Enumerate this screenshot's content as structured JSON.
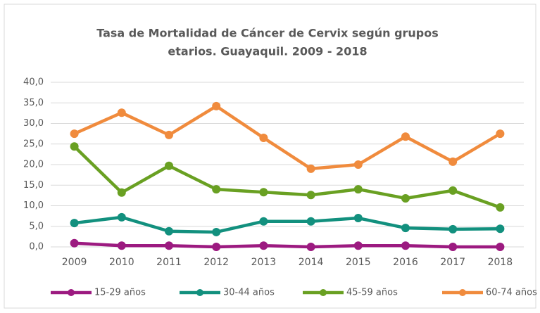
{
  "chart_data": {
    "type": "line",
    "title": [
      "Tasa de Mortalidad de Cáncer de Cervix según grupos",
      "etarios. Guayaquil. 2009 - 2018"
    ],
    "categories": [
      "2009",
      "2010",
      "2011",
      "2012",
      "2013",
      "2014",
      "2015",
      "2016",
      "2017",
      "2018"
    ],
    "series": [
      {
        "name": "15-29 años",
        "color": "#9c1a80",
        "values": [
          0.9,
          0.3,
          0.3,
          0.0,
          0.3,
          0.0,
          0.3,
          0.3,
          0.0,
          0.0
        ]
      },
      {
        "name": "30-44 años",
        "color": "#12907e",
        "values": [
          5.8,
          7.2,
          3.8,
          3.6,
          6.2,
          6.2,
          7.0,
          4.6,
          4.3,
          4.4
        ]
      },
      {
        "name": "45-59 años",
        "color": "#69a022",
        "values": [
          24.4,
          13.2,
          19.7,
          14.0,
          13.3,
          12.6,
          14.0,
          11.8,
          13.7,
          9.6
        ]
      },
      {
        "name": "60-74 años",
        "color": "#f08b3d",
        "values": [
          27.5,
          32.6,
          27.2,
          34.2,
          26.5,
          19.0,
          20.0,
          26.8,
          20.7,
          27.5
        ]
      }
    ],
    "ylim": [
      0,
      40
    ],
    "yticks": [
      {
        "value": 0,
        "label": "0,0"
      },
      {
        "value": 5,
        "label": "5,0"
      },
      {
        "value": 10,
        "label": "10,0"
      },
      {
        "value": 15,
        "label": "15,0"
      },
      {
        "value": 20,
        "label": "20,0"
      },
      {
        "value": 25,
        "label": "25,0"
      },
      {
        "value": 30,
        "label": "30,0"
      },
      {
        "value": 35,
        "label": "35,0"
      },
      {
        "value": 40,
        "label": "40,0"
      }
    ],
    "grid": true,
    "legend": "bottom"
  }
}
